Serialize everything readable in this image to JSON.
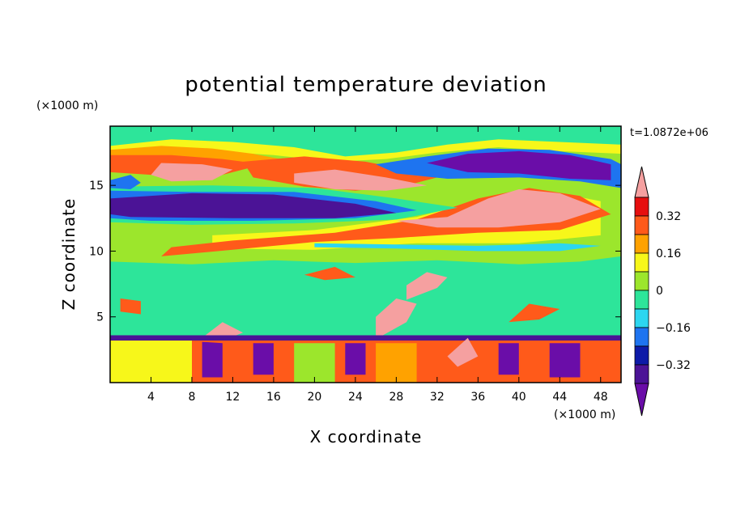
{
  "chart_data": {
    "type": "heatmap",
    "title": "potential temperature deviation",
    "xlabel": "X coordinate",
    "ylabel": "Z coordinate",
    "x_unit": "(×1000 m)",
    "y_unit": "(×1000 m)",
    "time_label": "t=1.0872e+06",
    "xlim": [
      0,
      50
    ],
    "ylim": [
      0,
      19.5
    ],
    "x_ticks": [
      4,
      8,
      12,
      16,
      20,
      24,
      28,
      32,
      36,
      40,
      44,
      48
    ],
    "y_ticks": [
      5,
      10,
      15
    ],
    "colorbar": {
      "levels": [
        -0.4,
        -0.32,
        -0.24,
        -0.16,
        -0.08,
        0,
        0.08,
        0.16,
        0.24,
        0.32,
        0.4
      ],
      "labels": [
        "0.32",
        "0.16",
        "0",
        "−0.16",
        "−0.32"
      ],
      "label_values": [
        0.32,
        0.16,
        0,
        -0.16,
        -0.32
      ],
      "colors_low_to_high": [
        "#6a0da8",
        "#4b1396",
        "#0d1aa8",
        "#1e74f0",
        "#2cd6f0",
        "#2de59a",
        "#9ce62c",
        "#f7f71a",
        "#ffa200",
        "#ff5a1a",
        "#e60f0f",
        "#f5a0a0"
      ],
      "extends": "both"
    },
    "layers": [
      {
        "value": 0.04,
        "poly": [
          [
            0,
            17.3
          ],
          [
            3,
            17.6
          ],
          [
            8,
            18.3
          ],
          [
            14,
            18.1
          ],
          [
            18,
            17.4
          ],
          [
            22,
            17.0
          ],
          [
            27,
            17.3
          ],
          [
            33,
            17.9
          ],
          [
            39,
            18.4
          ],
          [
            45,
            18.0
          ],
          [
            50,
            17.6
          ],
          [
            50,
            9.6
          ],
          [
            46,
            9.2
          ],
          [
            40,
            9.0
          ],
          [
            32,
            9.3
          ],
          [
            24,
            9.1
          ],
          [
            16,
            9.3
          ],
          [
            8,
            9.0
          ],
          [
            0,
            9.2
          ]
        ]
      },
      {
        "value": 0.12,
        "poly": [
          [
            0,
            18.0
          ],
          [
            6,
            18.5
          ],
          [
            12,
            18.3
          ],
          [
            18,
            17.9
          ],
          [
            23,
            17.2
          ],
          [
            28,
            17.5
          ],
          [
            33,
            18.1
          ],
          [
            38,
            18.5
          ],
          [
            44,
            18.3
          ],
          [
            50,
            18.1
          ],
          [
            50,
            17.4
          ],
          [
            44,
            17.6
          ],
          [
            38,
            17.9
          ],
          [
            32,
            17.5
          ],
          [
            27,
            17.0
          ],
          [
            22,
            16.8
          ],
          [
            16,
            17.3
          ],
          [
            10,
            17.6
          ],
          [
            4,
            17.5
          ],
          [
            0,
            17.4
          ]
        ]
      },
      {
        "value": 0.2,
        "poly": [
          [
            0,
            17.7
          ],
          [
            5,
            18.0
          ],
          [
            10,
            17.8
          ],
          [
            14,
            17.4
          ],
          [
            18,
            16.8
          ],
          [
            14,
            16.4
          ],
          [
            9,
            16.3
          ],
          [
            4,
            16.4
          ],
          [
            0,
            16.3
          ]
        ]
      },
      {
        "value": 0.28,
        "poly": [
          [
            0,
            17.3
          ],
          [
            6,
            17.3
          ],
          [
            11,
            17.0
          ],
          [
            15,
            16.6
          ],
          [
            11,
            15.8
          ],
          [
            6,
            15.7
          ],
          [
            2,
            15.9
          ],
          [
            0,
            16.0
          ]
        ]
      },
      {
        "value": 0.44,
        "poly": [
          [
            5,
            16.7
          ],
          [
            9,
            16.6
          ],
          [
            12,
            16.2
          ],
          [
            10,
            15.4
          ],
          [
            6,
            15.3
          ],
          [
            4,
            15.8
          ]
        ]
      },
      {
        "value": 0.28,
        "poly": [
          [
            13,
            16.8
          ],
          [
            19,
            17.2
          ],
          [
            25,
            16.8
          ],
          [
            29,
            16.2
          ],
          [
            33,
            15.8
          ],
          [
            29,
            15.0
          ],
          [
            24,
            14.6
          ],
          [
            19,
            14.9
          ],
          [
            14,
            15.6
          ]
        ]
      },
      {
        "value": 0.44,
        "poly": [
          [
            18,
            15.9
          ],
          [
            22,
            16.2
          ],
          [
            27,
            15.6
          ],
          [
            31,
            15.0
          ],
          [
            27,
            14.6
          ],
          [
            22,
            14.7
          ],
          [
            18,
            15.2
          ]
        ]
      },
      {
        "value": 0.12,
        "poly": [
          [
            10,
            11.2
          ],
          [
            20,
            11.6
          ],
          [
            30,
            12.6
          ],
          [
            38,
            14.2
          ],
          [
            44,
            14.4
          ],
          [
            48,
            13.8
          ],
          [
            48,
            11.2
          ],
          [
            40,
            10.6
          ],
          [
            30,
            10.6
          ],
          [
            20,
            10.1
          ],
          [
            10,
            10.2
          ]
        ]
      },
      {
        "value": 0.28,
        "poly": [
          [
            12,
            10.8
          ],
          [
            22,
            11.4
          ],
          [
            30,
            12.4
          ],
          [
            36,
            14.0
          ],
          [
            41,
            14.8
          ],
          [
            46,
            14.2
          ],
          [
            49,
            12.8
          ],
          [
            44,
            11.6
          ],
          [
            36,
            11.4
          ],
          [
            28,
            11.0
          ],
          [
            20,
            10.7
          ],
          [
            12,
            10.1
          ],
          [
            5,
            9.6
          ],
          [
            6,
            10.3
          ]
        ]
      },
      {
        "value": 0.44,
        "poly": [
          [
            28,
            12.3
          ],
          [
            33,
            12.6
          ],
          [
            37,
            14.0
          ],
          [
            40,
            14.7
          ],
          [
            44,
            14.4
          ],
          [
            48,
            13.2
          ],
          [
            44,
            12.2
          ],
          [
            38,
            11.8
          ],
          [
            32,
            11.8
          ]
        ]
      },
      {
        "value": -0.04,
        "poly": [
          [
            0,
            14.9
          ],
          [
            10,
            15.0
          ],
          [
            20,
            14.8
          ],
          [
            28,
            14.0
          ],
          [
            34,
            13.3
          ],
          [
            28,
            12.4
          ],
          [
            18,
            12.1
          ],
          [
            8,
            12.0
          ],
          [
            0,
            12.2
          ]
        ]
      },
      {
        "value": -0.2,
        "poly": [
          [
            0,
            14.6
          ],
          [
            8,
            14.5
          ],
          [
            18,
            14.5
          ],
          [
            26,
            13.8
          ],
          [
            30,
            13.1
          ],
          [
            24,
            12.5
          ],
          [
            14,
            12.3
          ],
          [
            4,
            12.3
          ],
          [
            0,
            12.5
          ]
        ]
      },
      {
        "value": -0.36,
        "poly": [
          [
            0,
            14.0
          ],
          [
            8,
            14.4
          ],
          [
            16,
            14.3
          ],
          [
            24,
            13.6
          ],
          [
            28,
            12.9
          ],
          [
            22,
            12.5
          ],
          [
            12,
            12.5
          ],
          [
            2,
            12.6
          ],
          [
            0,
            12.8
          ]
        ]
      },
      {
        "value": -0.2,
        "poly": [
          [
            26,
            16.6
          ],
          [
            31,
            17.2
          ],
          [
            37,
            17.8
          ],
          [
            43,
            17.7
          ],
          [
            49,
            17.0
          ],
          [
            50,
            16.6
          ],
          [
            50,
            14.8
          ],
          [
            46,
            15.3
          ],
          [
            40,
            15.6
          ],
          [
            33,
            15.5
          ],
          [
            28,
            15.9
          ]
        ]
      },
      {
        "value": -0.44,
        "poly": [
          [
            31,
            16.7
          ],
          [
            35,
            17.4
          ],
          [
            40,
            17.6
          ],
          [
            45,
            17.3
          ],
          [
            49,
            16.6
          ],
          [
            49,
            15.4
          ],
          [
            45,
            15.5
          ],
          [
            40,
            15.9
          ],
          [
            35,
            16.0
          ]
        ]
      },
      {
        "value": -0.2,
        "poly": [
          [
            0,
            15.4
          ],
          [
            2,
            15.8
          ],
          [
            3,
            15.2
          ],
          [
            2,
            14.7
          ],
          [
            0,
            14.8
          ]
        ]
      },
      {
        "value": -0.12,
        "poly": [
          [
            20,
            10.6
          ],
          [
            28,
            10.5
          ],
          [
            36,
            10.4
          ],
          [
            44,
            10.6
          ],
          [
            48,
            10.4
          ],
          [
            44,
            10.0
          ],
          [
            36,
            10.0
          ],
          [
            28,
            10.2
          ],
          [
            20,
            10.3
          ]
        ]
      },
      {
        "value": 0.28,
        "poly": [
          [
            1,
            5.4
          ],
          [
            3,
            5.2
          ],
          [
            3,
            6.2
          ],
          [
            1,
            6.4
          ]
        ]
      },
      {
        "value": 0.44,
        "poly": [
          [
            29,
            6.3
          ],
          [
            32,
            7.2
          ],
          [
            33,
            8.0
          ],
          [
            31,
            8.4
          ],
          [
            29,
            7.4
          ]
        ]
      },
      {
        "value": 0.44,
        "poly": [
          [
            26,
            3.3
          ],
          [
            29,
            4.6
          ],
          [
            30,
            6.0
          ],
          [
            28,
            6.4
          ],
          [
            26,
            5.0
          ]
        ]
      },
      {
        "value": 0.28,
        "poly": [
          [
            39,
            4.6
          ],
          [
            41,
            6.0
          ],
          [
            44,
            5.6
          ],
          [
            42,
            4.8
          ]
        ]
      },
      {
        "value": 0.44,
        "poly": [
          [
            9,
            3.4
          ],
          [
            11,
            4.6
          ],
          [
            13,
            3.8
          ],
          [
            11,
            3.2
          ]
        ]
      },
      {
        "value": 0.28,
        "poly": [
          [
            19,
            8.2
          ],
          [
            22,
            8.8
          ],
          [
            24,
            8.0
          ],
          [
            21,
            7.8
          ]
        ]
      },
      {
        "value": 0.28,
        "poly": [
          [
            0,
            3.6
          ],
          [
            50,
            3.6
          ],
          [
            50,
            0
          ],
          [
            0,
            0
          ]
        ]
      },
      {
        "value": -0.36,
        "poly": [
          [
            0,
            3.6
          ],
          [
            50,
            3.6
          ],
          [
            50,
            3.2
          ],
          [
            0,
            3.2
          ]
        ]
      },
      {
        "value": 0.12,
        "poly": [
          [
            0,
            3.2
          ],
          [
            8,
            3.2
          ],
          [
            8,
            0
          ],
          [
            0,
            0
          ]
        ]
      },
      {
        "value": -0.44,
        "poly": [
          [
            9,
            3.1
          ],
          [
            11,
            3.0
          ],
          [
            11,
            0.4
          ],
          [
            9,
            0.4
          ]
        ]
      },
      {
        "value": -0.44,
        "poly": [
          [
            14,
            3.0
          ],
          [
            16,
            3.0
          ],
          [
            16,
            0.6
          ],
          [
            14,
            0.6
          ]
        ]
      },
      {
        "value": -0.44,
        "poly": [
          [
            23,
            3.0
          ],
          [
            25,
            3.0
          ],
          [
            25,
            0.6
          ],
          [
            23,
            0.6
          ]
        ]
      },
      {
        "value": -0.44,
        "poly": [
          [
            38,
            3.0
          ],
          [
            40,
            3.0
          ],
          [
            40,
            0.6
          ],
          [
            38,
            0.6
          ]
        ]
      },
      {
        "value": -0.44,
        "poly": [
          [
            43,
            3.0
          ],
          [
            46,
            3.0
          ],
          [
            46,
            0.4
          ],
          [
            43,
            0.4
          ]
        ]
      },
      {
        "value": 0.44,
        "poly": [
          [
            33,
            2.0
          ],
          [
            35,
            3.4
          ],
          [
            36,
            2.0
          ],
          [
            34,
            1.2
          ]
        ]
      },
      {
        "value": 0.28,
        "poly": [
          [
            37,
            3.0
          ],
          [
            38,
            3.0
          ],
          [
            38,
            0.4
          ],
          [
            37,
            0.4
          ]
        ]
      },
      {
        "value": 0.28,
        "poly": [
          [
            47,
            3.0
          ],
          [
            49,
            3.2
          ],
          [
            49,
            0.8
          ],
          [
            47,
            0.6
          ]
        ]
      },
      {
        "value": 0.04,
        "poly": [
          [
            18,
            3.0
          ],
          [
            22,
            3.0
          ],
          [
            22,
            0
          ],
          [
            18,
            0
          ]
        ]
      },
      {
        "value": 0.2,
        "poly": [
          [
            26,
            3.0
          ],
          [
            30,
            3.0
          ],
          [
            30,
            0
          ],
          [
            26,
            0
          ]
        ]
      }
    ]
  }
}
